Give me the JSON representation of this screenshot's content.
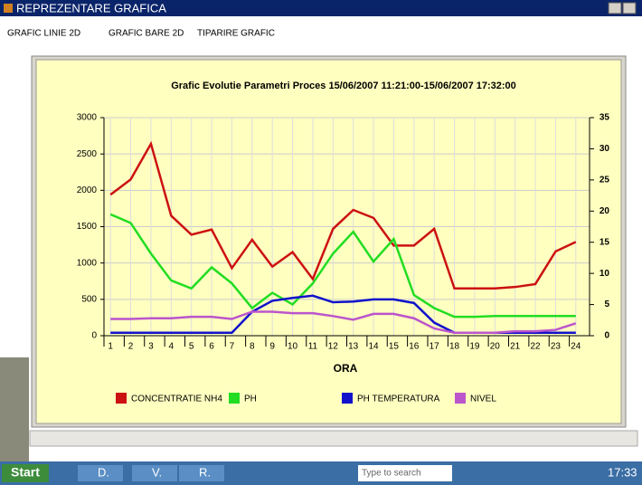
{
  "window": {
    "title": "REPREZENTARE GRAFICA",
    "menu": [
      "GRAFIC LINIE 2D",
      "GRAFIC BARE 2D",
      "TIPARIRE GRAFIC"
    ]
  },
  "chart_data": {
    "type": "line",
    "title": "Grafic Evolutie Parametri Proces 15/06/2007 11:21:00-15/06/2007 17:32:00",
    "x_label": "ORA",
    "categories": [
      "1",
      "2",
      "3",
      "4",
      "5",
      "6",
      "7",
      "8",
      "9",
      "10",
      "11",
      "12",
      "13",
      "14",
      "15",
      "16",
      "17",
      "18",
      "19",
      "20",
      "21",
      "22",
      "23",
      "24"
    ],
    "ylim": [
      0,
      3000
    ],
    "yticks": [
      0,
      500,
      1000,
      1500,
      2000,
      2500,
      3000
    ],
    "y2lim": [
      0,
      35
    ],
    "y2ticks": [
      0,
      5,
      10,
      15,
      20,
      25,
      30,
      35
    ],
    "grid": true,
    "legend": "bottom",
    "series": [
      {
        "name": "CONCENTRATIE NH4",
        "color": "#cc1111",
        "values": [
          1940,
          2150,
          2640,
          1650,
          1390,
          1460,
          930,
          1320,
          950,
          1150,
          780,
          1470,
          1730,
          1620,
          1240,
          1240,
          1470,
          650,
          650,
          650,
          670,
          710,
          1160,
          1290
        ]
      },
      {
        "name": "PH",
        "color": "#22dd22",
        "values": [
          1670,
          1550,
          1130,
          760,
          650,
          940,
          720,
          380,
          590,
          430,
          720,
          1130,
          1430,
          1020,
          1330,
          560,
          380,
          260,
          260,
          270,
          270,
          270,
          270,
          270
        ]
      },
      {
        "name": "PH TEMPERATURA",
        "color": "#1111cc",
        "values": [
          40,
          40,
          40,
          40,
          40,
          40,
          40,
          330,
          480,
          520,
          550,
          460,
          470,
          500,
          500,
          450,
          180,
          40,
          40,
          40,
          40,
          40,
          40,
          40
        ]
      },
      {
        "name": "NIVEL",
        "color": "#bb55cc",
        "values": [
          230,
          230,
          240,
          240,
          260,
          260,
          230,
          330,
          330,
          310,
          310,
          270,
          220,
          300,
          300,
          240,
          100,
          40,
          40,
          40,
          60,
          60,
          80,
          170
        ]
      }
    ]
  },
  "taskbar": {
    "start": "Start",
    "items": [
      "D.",
      "V.",
      "R."
    ],
    "search": "Type to search",
    "clock": "17:33"
  }
}
